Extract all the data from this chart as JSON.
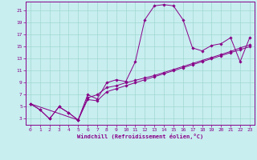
{
  "xlabel": "Windchill (Refroidissement éolien,°C)",
  "background_color": "#c8eef0",
  "grid_color": "#a0d8d0",
  "line_color": "#880088",
  "x_ticks": [
    0,
    1,
    2,
    3,
    4,
    5,
    6,
    7,
    8,
    9,
    10,
    11,
    12,
    13,
    14,
    15,
    16,
    17,
    18,
    19,
    20,
    21,
    22,
    23
  ],
  "y_ticks": [
    3,
    5,
    7,
    9,
    11,
    13,
    15,
    17,
    19,
    21
  ],
  "xlim": [
    -0.5,
    23.5
  ],
  "ylim": [
    2.0,
    22.5
  ],
  "series1_x": [
    0,
    1,
    2,
    3,
    4,
    5,
    6,
    7,
    8,
    9,
    10,
    11,
    12,
    13,
    14,
    15,
    16,
    17,
    18,
    19,
    20,
    21,
    22,
    23
  ],
  "series1_y": [
    5.5,
    4.5,
    3.0,
    5.0,
    4.0,
    2.8,
    7.0,
    6.3,
    9.0,
    9.5,
    9.2,
    12.5,
    19.5,
    21.8,
    22.0,
    21.8,
    19.5,
    14.8,
    14.3,
    15.2,
    15.5,
    16.5,
    12.5,
    16.5
  ],
  "series2_x": [
    0,
    1,
    2,
    3,
    4,
    5,
    6,
    7,
    8,
    9,
    10,
    11,
    12,
    13,
    14,
    15,
    16,
    17,
    18,
    19,
    20,
    21,
    22,
    23
  ],
  "series2_y": [
    5.5,
    4.5,
    3.0,
    5.0,
    4.0,
    2.8,
    6.5,
    7.0,
    8.2,
    8.5,
    9.0,
    9.4,
    9.8,
    10.2,
    10.7,
    11.2,
    11.7,
    12.2,
    12.7,
    13.2,
    13.7,
    14.2,
    14.8,
    15.3
  ],
  "series3_x": [
    0,
    5,
    6,
    7,
    8,
    9,
    10,
    11,
    12,
    13,
    14,
    15,
    16,
    17,
    18,
    19,
    20,
    21,
    22,
    23
  ],
  "series3_y": [
    5.5,
    2.8,
    6.2,
    6.0,
    7.5,
    8.0,
    8.5,
    9.0,
    9.5,
    10.0,
    10.5,
    11.0,
    11.5,
    12.0,
    12.5,
    13.0,
    13.5,
    14.0,
    14.5,
    15.0
  ]
}
